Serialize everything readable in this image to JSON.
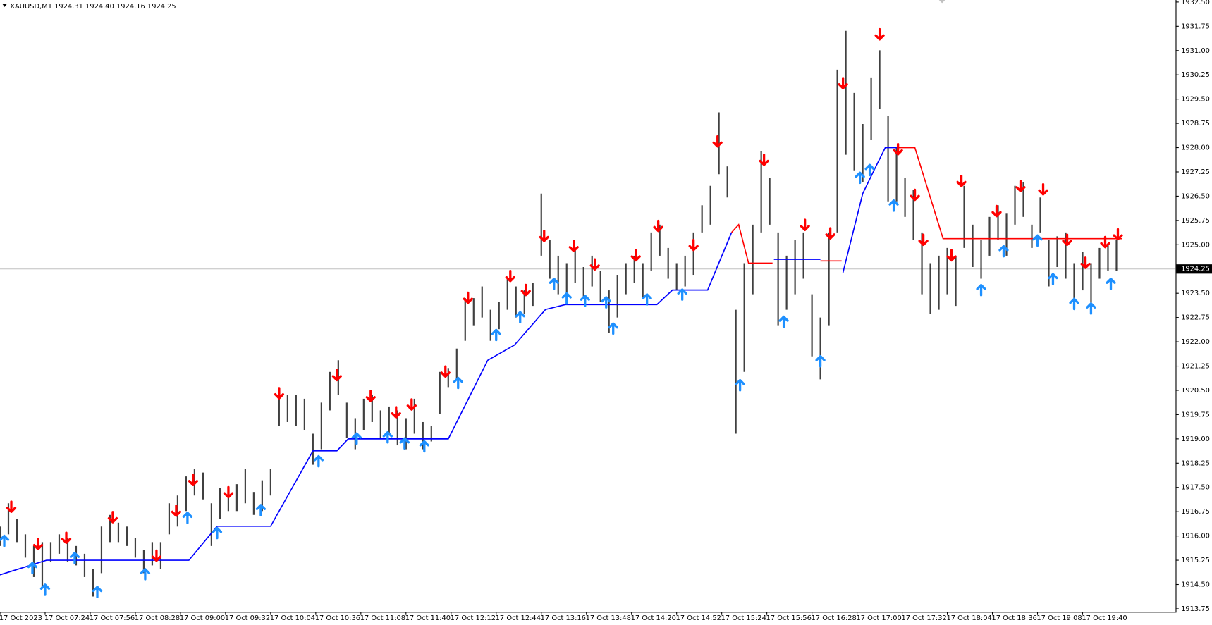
{
  "chart_data": {
    "type": "ohlc",
    "title": "XAUUSD,M1  1924.31 1924.40 1924.16 1924.25",
    "bar_color": "#000000",
    "xlim": [
      0,
      834
    ],
    "ylim": [
      1913.655,
      1932.563
    ],
    "grid": false,
    "current_price": 1924.25,
    "x": [
      0,
      6,
      12,
      18,
      24,
      30,
      36,
      42,
      48,
      54,
      60,
      66,
      72,
      78,
      84,
      90,
      96,
      102,
      108,
      114,
      120,
      126,
      132,
      138,
      144,
      150,
      156,
      162,
      168,
      174,
      180,
      186,
      192,
      198,
      204,
      210,
      216,
      222,
      228,
      234,
      240,
      246,
      252,
      258,
      264,
      270,
      276,
      282,
      288,
      294,
      300,
      306,
      312,
      318,
      324,
      330,
      336,
      342,
      348,
      354,
      360,
      366,
      372,
      378,
      384,
      390,
      396,
      402,
      408,
      414,
      420,
      426,
      432,
      438,
      444,
      450,
      456,
      462,
      468,
      474,
      480,
      486,
      492,
      498,
      504,
      510,
      516,
      522,
      528,
      534,
      540,
      546,
      552,
      558,
      564,
      570,
      576,
      582,
      588,
      594,
      600,
      606,
      612,
      618,
      624,
      630,
      636,
      642,
      648,
      654,
      660,
      666,
      672,
      678,
      684,
      690,
      696,
      702,
      708,
      714,
      720,
      726,
      732,
      738,
      744,
      750,
      756,
      762,
      768,
      774,
      780,
      786,
      792
    ],
    "high": [
      1916.29,
      1917.01,
      1916.53,
      1916.05,
      1915.69,
      1915.81,
      1915.81,
      1916.05,
      1915.93,
      1915.69,
      1915.45,
      1914.97,
      1916.29,
      1916.65,
      1916.41,
      1916.29,
      1915.93,
      1915.57,
      1915.81,
      1915.81,
      1917.01,
      1917.25,
      1917.84,
      1918.08,
      1917.96,
      1917.01,
      1917.48,
      1917.48,
      1917.6,
      1918.08,
      1917.36,
      1917.72,
      1918.08,
      1920.48,
      1920.36,
      1920.36,
      1920.24,
      1919.16,
      1920.12,
      1921.07,
      1921.43,
      1920.12,
      1919.64,
      1920.24,
      1920.36,
      1919.88,
      1920.0,
      1919.88,
      1919.64,
      1920.24,
      1919.52,
      1919.4,
      1921.07,
      1921.19,
      1921.79,
      1923.35,
      1923.35,
      1923.71,
      1922.99,
      1923.23,
      1923.95,
      1923.71,
      1923.59,
      1923.83,
      1926.58,
      1925.14,
      1924.66,
      1924.43,
      1924.9,
      1924.31,
      1924.66,
      1924.19,
      1923.59,
      1924.07,
      1924.43,
      1924.66,
      1924.43,
      1925.38,
      1925.62,
      1924.9,
      1924.43,
      1924.66,
      1925.38,
      1926.22,
      1926.82,
      1929.09,
      1927.42,
      1922.99,
      1924.43,
      1925.62,
      1927.9,
      1927.06,
      1925.38,
      1924.66,
      1925.14,
      1925.38,
      1923.47,
      1922.75,
      1925.38,
      1930.41,
      1931.61,
      1929.69,
      1928.73,
      1930.17,
      1931.01,
      1928.97,
      1928.01,
      1927.06,
      1926.7,
      1925.38,
      1924.43,
      1924.66,
      1924.9,
      1924.66,
      1926.82,
      1925.62,
      1925.14,
      1925.86,
      1926.22,
      1925.98,
      1926.82,
      1926.94,
      1925.62,
      1926.46,
      1925.14,
      1925.26,
      1925.38,
      1924.43,
      1924.78,
      1924.43,
      1924.9,
      1925.02,
      1925.14
    ],
    "low": [
      1915.69,
      1916.05,
      1915.81,
      1915.33,
      1914.73,
      1914.37,
      1915.21,
      1915.45,
      1915.21,
      1915.09,
      1914.73,
      1914.13,
      1914.85,
      1915.81,
      1915.81,
      1915.69,
      1915.33,
      1914.85,
      1915.09,
      1914.97,
      1916.05,
      1916.29,
      1916.77,
      1917.25,
      1917.13,
      1915.69,
      1916.53,
      1916.77,
      1916.77,
      1917.01,
      1916.65,
      1916.77,
      1917.25,
      1919.4,
      1919.52,
      1919.4,
      1919.28,
      1918.2,
      1918.68,
      1919.88,
      1920.36,
      1919.04,
      1918.68,
      1919.28,
      1919.52,
      1919.04,
      1919.16,
      1918.8,
      1918.68,
      1919.16,
      1918.68,
      1918.92,
      1919.76,
      1920.6,
      1920.84,
      1922.03,
      1922.51,
      1922.75,
      1922.03,
      1922.39,
      1922.99,
      1922.75,
      1922.87,
      1923.11,
      1924.66,
      1923.95,
      1923.47,
      1923.35,
      1923.83,
      1923.35,
      1923.71,
      1923.23,
      1922.27,
      1922.75,
      1923.47,
      1923.83,
      1923.35,
      1924.19,
      1924.66,
      1923.95,
      1923.59,
      1923.71,
      1924.07,
      1925.38,
      1925.62,
      1927.18,
      1926.46,
      1919.16,
      1921.07,
      1923.47,
      1925.38,
      1925.62,
      1922.51,
      1922.99,
      1923.47,
      1923.95,
      1921.55,
      1920.84,
      1922.51,
      1925.38,
      1927.78,
      1927.3,
      1926.94,
      1928.25,
      1929.21,
      1926.34,
      1926.34,
      1925.86,
      1925.14,
      1923.47,
      1922.87,
      1922.99,
      1923.47,
      1923.11,
      1924.9,
      1924.31,
      1923.95,
      1924.66,
      1925.14,
      1924.66,
      1925.62,
      1925.86,
      1924.9,
      1925.38,
      1923.71,
      1924.31,
      1923.95,
      1923.35,
      1923.59,
      1923.11,
      1923.95,
      1924.19,
      1924.19
    ],
    "trail_x": [
      0,
      33,
      134,
      154,
      192,
      222,
      239,
      247,
      318,
      346,
      365,
      387,
      401,
      466,
      477,
      502,
      519,
      524,
      531,
      548,
      549,
      582,
      597,
      598,
      612,
      620,
      628,
      637,
      649,
      669,
      796
    ],
    "trail_up": {
      "color": "#0000ff",
      "values": [
        1914.8,
        1915.25,
        1915.25,
        1916.3,
        1916.3,
        1918.63,
        1918.63,
        1919.0,
        1919.0,
        1921.43,
        1921.9,
        1923.0,
        1923.15,
        1923.15,
        1923.6,
        1923.6,
        1925.38,
        null,
        null,
        null,
        1924.55,
        1924.55,
        null,
        1924.14,
        1926.58,
        1927.3,
        1928.0,
        1928.0,
        null,
        null,
        null
      ]
    },
    "trail_down": {
      "color": "#ff0000",
      "values": [
        null,
        null,
        null,
        null,
        null,
        null,
        null,
        null,
        null,
        null,
        null,
        null,
        null,
        null,
        null,
        null,
        1925.38,
        1925.62,
        1924.43,
        1924.43,
        null,
        1924.5,
        1924.5,
        null,
        null,
        null,
        null,
        1928.0,
        1928.0,
        1925.19,
        1925.19
      ]
    },
    "sell_arrows": {
      "color": "#ff0000",
      "x": [
        8,
        27,
        47,
        80,
        111,
        125,
        137,
        162,
        198,
        239,
        263,
        281,
        292,
        316,
        332,
        362,
        373,
        386,
        407,
        422,
        451,
        467,
        492,
        509,
        542,
        571,
        589,
        598,
        624,
        637,
        649,
        655,
        675,
        682,
        707,
        724,
        740,
        757,
        770,
        784,
        793
      ],
      "values": [
        1916.89,
        1915.74,
        1915.93,
        1916.57,
        1915.38,
        1916.77,
        1917.72,
        1917.34,
        1920.4,
        1920.96,
        1920.31,
        1919.81,
        1920.05,
        1921.07,
        1923.35,
        1924.02,
        1923.59,
        1925.26,
        1924.95,
        1924.38,
        1924.66,
        1925.57,
        1924.98,
        1928.18,
        1927.61,
        1925.6,
        1925.34,
        1929.98,
        1931.49,
        1927.94,
        1926.53,
        1925.14,
        1924.66,
        1926.96,
        1926.03,
        1926.8,
        1926.7,
        1925.14,
        1924.43,
        1925.07,
        1925.31
      ]
    },
    "buy_arrows": {
      "color": "#1e90ff",
      "x": [
        3,
        23,
        32,
        53,
        69,
        103,
        133,
        154,
        185,
        226,
        253,
        275,
        287,
        301,
        325,
        352,
        369,
        393,
        402,
        415,
        430,
        435,
        459,
        484,
        525,
        556,
        582,
        610,
        617,
        634,
        696,
        712,
        736,
        747,
        762,
        774,
        788
      ],
      "values": [
        1915.86,
        1915.02,
        1914.35,
        1915.33,
        1914.28,
        1914.83,
        1916.57,
        1916.1,
        1916.81,
        1918.32,
        1919.02,
        1919.06,
        1918.87,
        1918.78,
        1920.74,
        1922.22,
        1922.77,
        1923.8,
        1923.35,
        1923.28,
        1923.23,
        1922.42,
        1923.32,
        1923.47,
        1920.67,
        1922.63,
        1921.41,
        1927.08,
        1927.32,
        1926.22,
        1923.61,
        1924.81,
        1925.14,
        1923.95,
        1923.18,
        1923.04,
        1923.8
      ]
    },
    "xticks": [
      {
        "value": 0,
        "label": "17 Oct 2023"
      },
      {
        "value": 32,
        "label": "17 Oct 07:24"
      },
      {
        "value": 64,
        "label": "17 Oct 07:56"
      },
      {
        "value": 96,
        "label": "17 Oct 08:28"
      },
      {
        "value": 128,
        "label": "17 Oct 09:00"
      },
      {
        "value": 160,
        "label": "17 Oct 09:32"
      },
      {
        "value": 192,
        "label": "17 Oct 10:04"
      },
      {
        "value": 224,
        "label": "17 Oct 10:36"
      },
      {
        "value": 256,
        "label": "17 Oct 11:08"
      },
      {
        "value": 288,
        "label": "17 Oct 11:40"
      },
      {
        "value": 320,
        "label": "17 Oct 12:12"
      },
      {
        "value": 352,
        "label": "17 Oct 12:44"
      },
      {
        "value": 384,
        "label": "17 Oct 13:16"
      },
      {
        "value": 416,
        "label": "17 Oct 13:48"
      },
      {
        "value": 448,
        "label": "17 Oct 14:20"
      },
      {
        "value": 480,
        "label": "17 Oct 14:52"
      },
      {
        "value": 512,
        "label": "17 Oct 15:24"
      },
      {
        "value": 544,
        "label": "17 Oct 15:56"
      },
      {
        "value": 576,
        "label": "17 Oct 16:28"
      },
      {
        "value": 608,
        "label": "17 Oct 17:00"
      },
      {
        "value": 640,
        "label": "17 Oct 17:32"
      },
      {
        "value": 672,
        "label": "17 Oct 18:04"
      },
      {
        "value": 704,
        "label": "17 Oct 18:36"
      },
      {
        "value": 736,
        "label": "17 Oct 19:08"
      },
      {
        "value": 768,
        "label": "17 Oct 19:40"
      }
    ],
    "yticks": [
      {
        "value": 1913.75,
        "label": "1913.75"
      },
      {
        "value": 1914.5,
        "label": "1914.50"
      },
      {
        "value": 1915.25,
        "label": "1915.25"
      },
      {
        "value": 1916,
        "label": "1916.00"
      },
      {
        "value": 1916.75,
        "label": "1916.75"
      },
      {
        "value": 1917.5,
        "label": "1917.50"
      },
      {
        "value": 1918.25,
        "label": "1918.25"
      },
      {
        "value": 1919,
        "label": "1919.00"
      },
      {
        "value": 1919.75,
        "label": "1919.75"
      },
      {
        "value": 1920.5,
        "label": "1920.50"
      },
      {
        "value": 1921.25,
        "label": "1921.25"
      },
      {
        "value": 1922,
        "label": "1922.00"
      },
      {
        "value": 1922.75,
        "label": "1922.75"
      },
      {
        "value": 1923.5,
        "label": "1923.50"
      },
      {
        "value": 1925,
        "label": "1925.00"
      },
      {
        "value": 1925.75,
        "label": "1925.75"
      },
      {
        "value": 1926.5,
        "label": "1926.50"
      },
      {
        "value": 1927.25,
        "label": "1927.25"
      },
      {
        "value": 1928,
        "label": "1928.00"
      },
      {
        "value": 1928.75,
        "label": "1928.75"
      },
      {
        "value": 1929.5,
        "label": "1929.50"
      },
      {
        "value": 1930.25,
        "label": "1930.25"
      },
      {
        "value": 1931,
        "label": "1931.00"
      },
      {
        "value": 1931.75,
        "label": "1931.75"
      },
      {
        "value": 1932.5,
        "label": "1932.50"
      }
    ]
  }
}
